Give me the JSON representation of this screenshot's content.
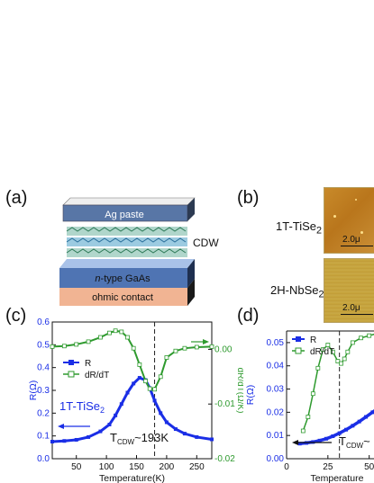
{
  "panels": {
    "a": "(a)",
    "b": "(b)",
    "c": "(c)",
    "d": "(d)"
  },
  "diagram": {
    "ag_paste": "Ag paste",
    "cdw": "CDW",
    "gaas_italic": "n",
    "gaas_rest": "-type GaAs",
    "ohmic": "ohmic contact"
  },
  "afm": {
    "tise2_prefix": "1T-TiSe",
    "tise2_sub": "2",
    "nbse2_prefix": "2H-NbSe",
    "nbse2_sub": "2",
    "scale_label": "2.0μ"
  },
  "chart_data": [
    {
      "type": "line",
      "panel": "c",
      "xlabel": "Temperature(K)",
      "ylabel": "R(Ω)",
      "ylabel2": "dR/dT(Ω/K)",
      "xlim": [
        10,
        275
      ],
      "ylim": [
        0.0,
        0.6
      ],
      "ylim2": [
        -0.02,
        0.005
      ],
      "xticks": [
        50,
        100,
        150,
        200,
        250
      ],
      "yticks": [
        0.0,
        0.1,
        0.2,
        0.3,
        0.4,
        0.5,
        0.6
      ],
      "yticks2": [
        0.0,
        -0.01,
        -0.02
      ],
      "ytick2_labels": [
        "0.00",
        "-0.01",
        "-0.02"
      ],
      "ytick_labels": [
        "0.0",
        "0.1",
        "0.2",
        "0.3",
        "0.4",
        "0.5",
        "0.6"
      ],
      "legend": [
        "R",
        "dR/dT"
      ],
      "annotations": {
        "sample_prefix": "1T-TiSe",
        "sample_sub": "2",
        "tcdw_prefix": "T",
        "tcdw_sub": "CDW",
        "tcdw_value": "~193K"
      },
      "vline_x": 180,
      "series": [
        {
          "name": "R",
          "axis": "left",
          "color": "#1a2ee6",
          "x": [
            10,
            30,
            50,
            70,
            90,
            105,
            115,
            125,
            135,
            145,
            155,
            165,
            172,
            180,
            190,
            200,
            215,
            230,
            250,
            275
          ],
          "y": [
            0.075,
            0.078,
            0.083,
            0.095,
            0.12,
            0.15,
            0.19,
            0.24,
            0.29,
            0.33,
            0.355,
            0.345,
            0.31,
            0.255,
            0.2,
            0.16,
            0.13,
            0.11,
            0.095,
            0.085
          ]
        },
        {
          "name": "dR/dT",
          "axis": "right",
          "color": "#2e9a2e",
          "x": [
            10,
            30,
            50,
            70,
            90,
            105,
            115,
            125,
            135,
            145,
            155,
            165,
            172,
            180,
            190,
            200,
            215,
            230,
            250,
            275
          ],
          "y": [
            0.0005,
            0.0006,
            0.0009,
            0.0014,
            0.0022,
            0.003,
            0.0034,
            0.0032,
            0.0022,
            0.0002,
            -0.0028,
            -0.0058,
            -0.0072,
            -0.0073,
            -0.005,
            -0.0015,
            -0.0003,
            0.0002,
            0.0004,
            0.0005
          ]
        }
      ]
    },
    {
      "type": "line",
      "panel": "d",
      "xlabel": "Temperature",
      "ylabel": "R(Ω)",
      "xlim": [
        0,
        60
      ],
      "ylim": [
        0.0,
        0.055
      ],
      "xticks": [
        0,
        25,
        50
      ],
      "yticks": [
        0.0,
        0.01,
        0.02,
        0.03,
        0.04,
        0.05
      ],
      "ytick_labels": [
        "0.00",
        "0.01",
        "0.02",
        "0.03",
        "0.04",
        "0.05"
      ],
      "legend": [
        "R",
        "dR/dT"
      ],
      "annotations": {
        "tcdw_prefix": "T",
        "tcdw_sub": "CDW",
        "tcdw_value": "~"
      },
      "vline_x": 32,
      "series": [
        {
          "name": "R",
          "axis": "left",
          "color": "#1a2ee6",
          "x": [
            8,
            12,
            16,
            20,
            24,
            28,
            32,
            36,
            40,
            44,
            48,
            52,
            56,
            60
          ],
          "y": [
            0.0065,
            0.0068,
            0.0072,
            0.0078,
            0.0086,
            0.0097,
            0.011,
            0.0125,
            0.0142,
            0.016,
            0.018,
            0.02,
            0.022,
            0.024
          ]
        },
        {
          "name": "dR/dT",
          "axis": "left",
          "color": "#2e9a2e",
          "x": [
            10,
            13,
            16,
            19,
            22,
            25,
            28,
            31,
            33,
            35,
            37,
            40,
            45,
            50,
            55,
            60
          ],
          "y": [
            0.012,
            0.018,
            0.028,
            0.039,
            0.047,
            0.049,
            0.046,
            0.042,
            0.041,
            0.043,
            0.046,
            0.05,
            0.052,
            0.053,
            0.054,
            0.055
          ]
        }
      ]
    }
  ]
}
